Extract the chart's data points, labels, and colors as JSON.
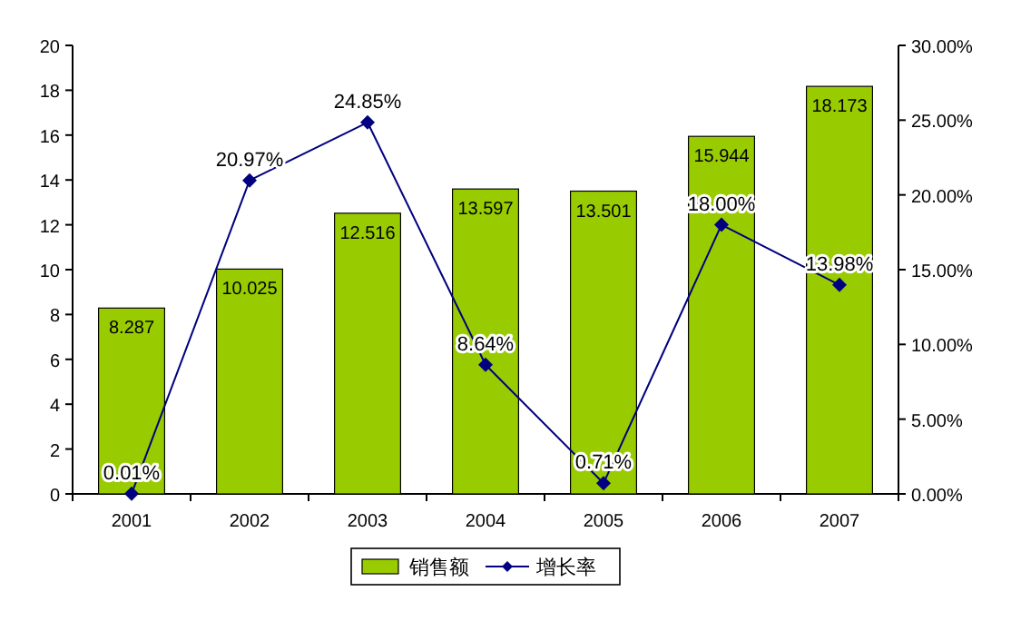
{
  "chart_data": {
    "type": "bar",
    "categories": [
      "2001",
      "2002",
      "2003",
      "2004",
      "2005",
      "2006",
      "2007"
    ],
    "series": [
      {
        "name": "销售额",
        "color": "#99cc00",
        "values": [
          8.287,
          10.025,
          12.516,
          13.597,
          13.501,
          15.944,
          18.173
        ],
        "value_labels": [
          "8.287",
          "10.025",
          "12.516",
          "13.597",
          "13.501",
          "15.944",
          "18.173"
        ]
      },
      {
        "name": "增长率",
        "type": "line",
        "axis": "y2",
        "color": "#000080",
        "values": [
          0.01,
          20.97,
          24.85,
          8.64,
          0.71,
          18.0,
          13.98
        ],
        "value_labels": [
          "0.01%",
          "20.97%",
          "24.85%",
          "8.64%",
          "0.71%",
          "18.00%",
          "13.98%"
        ]
      }
    ],
    "ylim": [
      0,
      20
    ],
    "yticks": [
      0,
      2,
      4,
      6,
      8,
      10,
      12,
      14,
      16,
      18,
      20
    ],
    "y2lim": [
      0,
      30
    ],
    "y2ticks": [
      {
        "value": 0,
        "label": "0.00%"
      },
      {
        "value": 5,
        "label": "5.00%"
      },
      {
        "value": 10,
        "label": "10.00%"
      },
      {
        "value": 15,
        "label": "15.00%"
      },
      {
        "value": 20,
        "label": "20.00%"
      },
      {
        "value": 25,
        "label": "25.00%"
      },
      {
        "value": 30,
        "label": "30.00%"
      }
    ],
    "marker": "diamond",
    "legend": "bottom"
  }
}
